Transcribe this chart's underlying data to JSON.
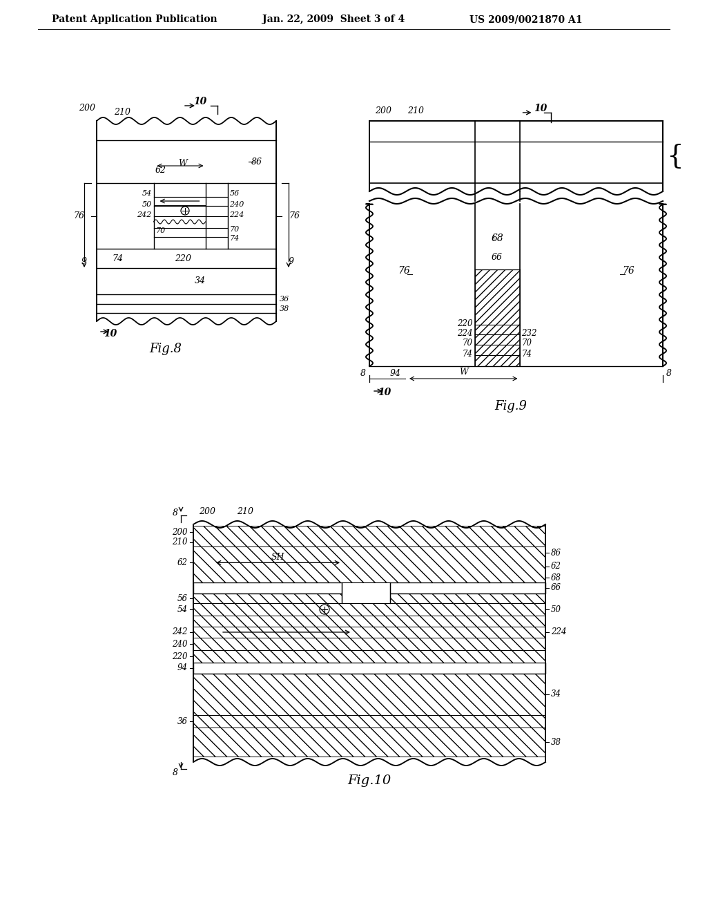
{
  "header_left": "Patent Application Publication",
  "header_mid": "Jan. 22, 2009  Sheet 3 of 4",
  "header_right": "US 2009/0021870 A1",
  "bg_color": "#ffffff",
  "line_color": "#000000",
  "fig8_label": "Fig.8",
  "fig9_label": "Fig.9",
  "fig10_label": "Fig.10"
}
